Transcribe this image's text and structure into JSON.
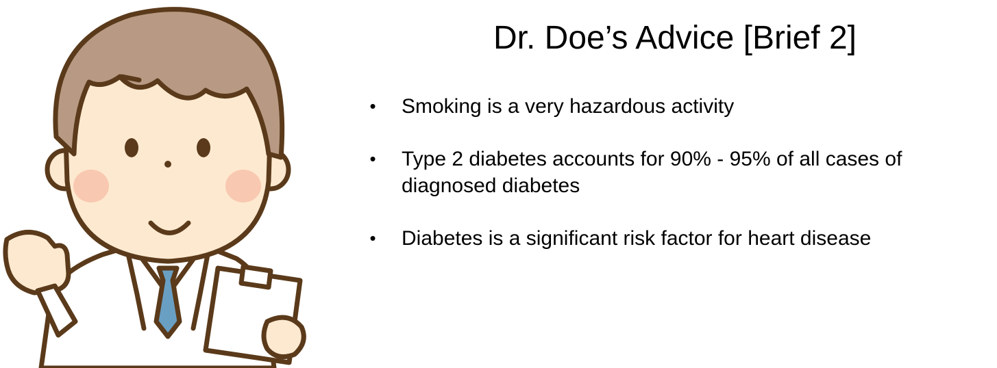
{
  "slide": {
    "title": "Dr. Doe’s Advice [Brief 2]",
    "bullet_symbol": "•",
    "bullets": [
      "Smoking is a very hazardous activity",
      "Type 2 diabetes accounts for 90% - 95% of all cases of diagnosed diabetes",
      "Diabetes is a significant risk factor for heart disease"
    ]
  },
  "illustration": {
    "subject": "doctor-with-clipboard",
    "colors": {
      "outline": "#5a3a1a",
      "hair": "#b89a84",
      "skin": "#fde9d0",
      "blush": "#f9c8b0",
      "tie": "#6a9fc4",
      "coat": "#ffffff"
    }
  }
}
